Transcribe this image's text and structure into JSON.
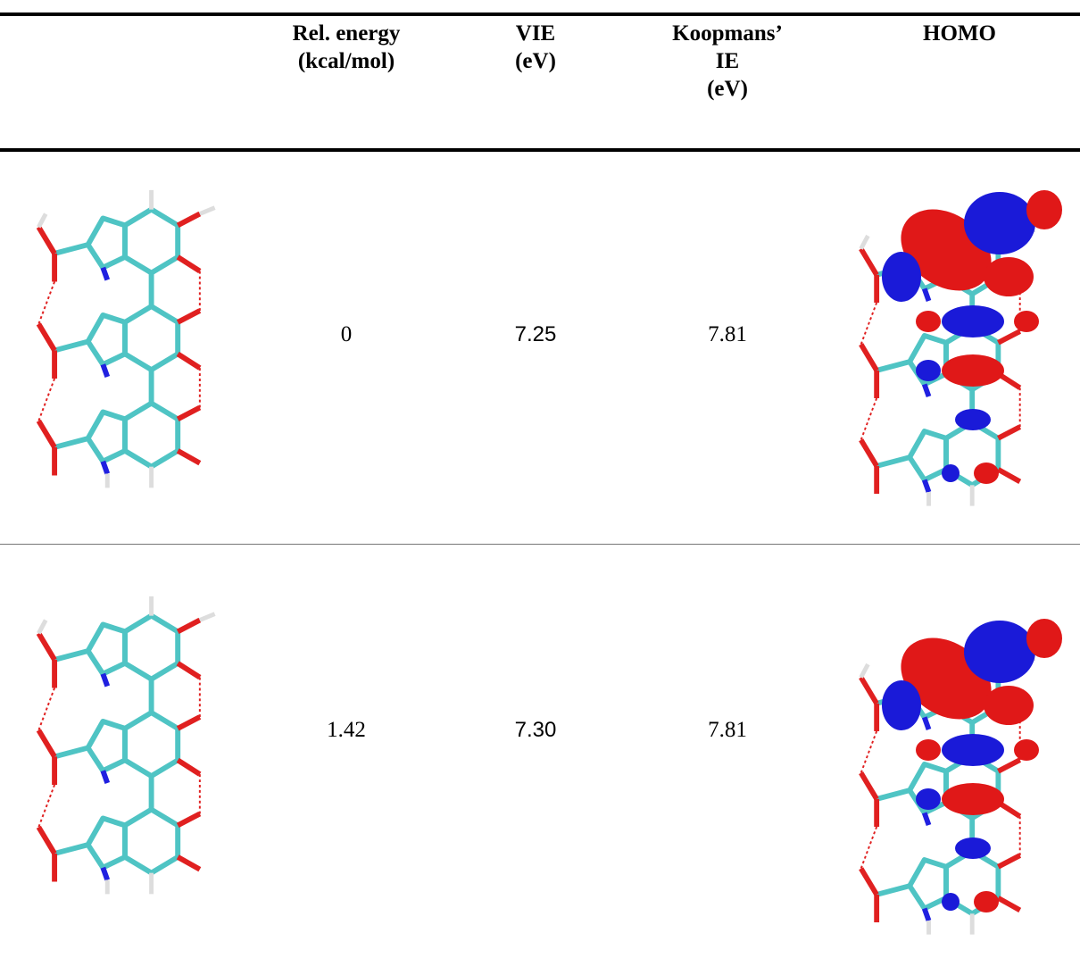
{
  "table": {
    "header": [
      [],
      [
        "Rel. energy",
        "(kcal/mol)"
      ],
      [
        "VIE",
        "(eV)"
      ],
      [
        "Koopmans’",
        "IE",
        "(eV)"
      ],
      [
        "HOMO"
      ]
    ],
    "rows": [
      [
        "0",
        "7.25",
        "7.81"
      ],
      [
        "1.42",
        "7.30",
        "7.81"
      ]
    ]
  }
}
